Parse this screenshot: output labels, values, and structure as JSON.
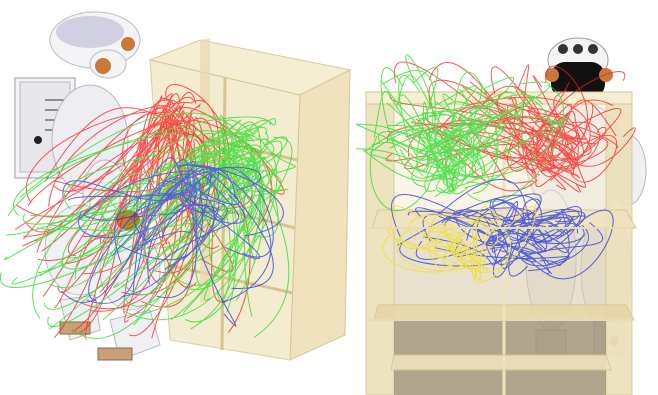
{
  "image": {
    "background": "#ffffff",
    "panels": [
      {
        "id": "left",
        "content": "robot-reaching-into-shelf-perspective"
      },
      {
        "id": "right",
        "content": "robot-behind-shelf-front-view"
      }
    ],
    "colors": {
      "shelf_light": "#f3e9c9",
      "shelf_mid": "#e6d5a7",
      "shelf_dark": "#8a7a5e",
      "robot_white": "#f4f4f6",
      "robot_gray": "#c9c9cf",
      "robot_orange": "#c9793a",
      "traj_red": "#ff1a1a",
      "traj_green": "#22dd22",
      "traj_blue": "#2233dd",
      "traj_yellow": "#f0e020"
    }
  }
}
